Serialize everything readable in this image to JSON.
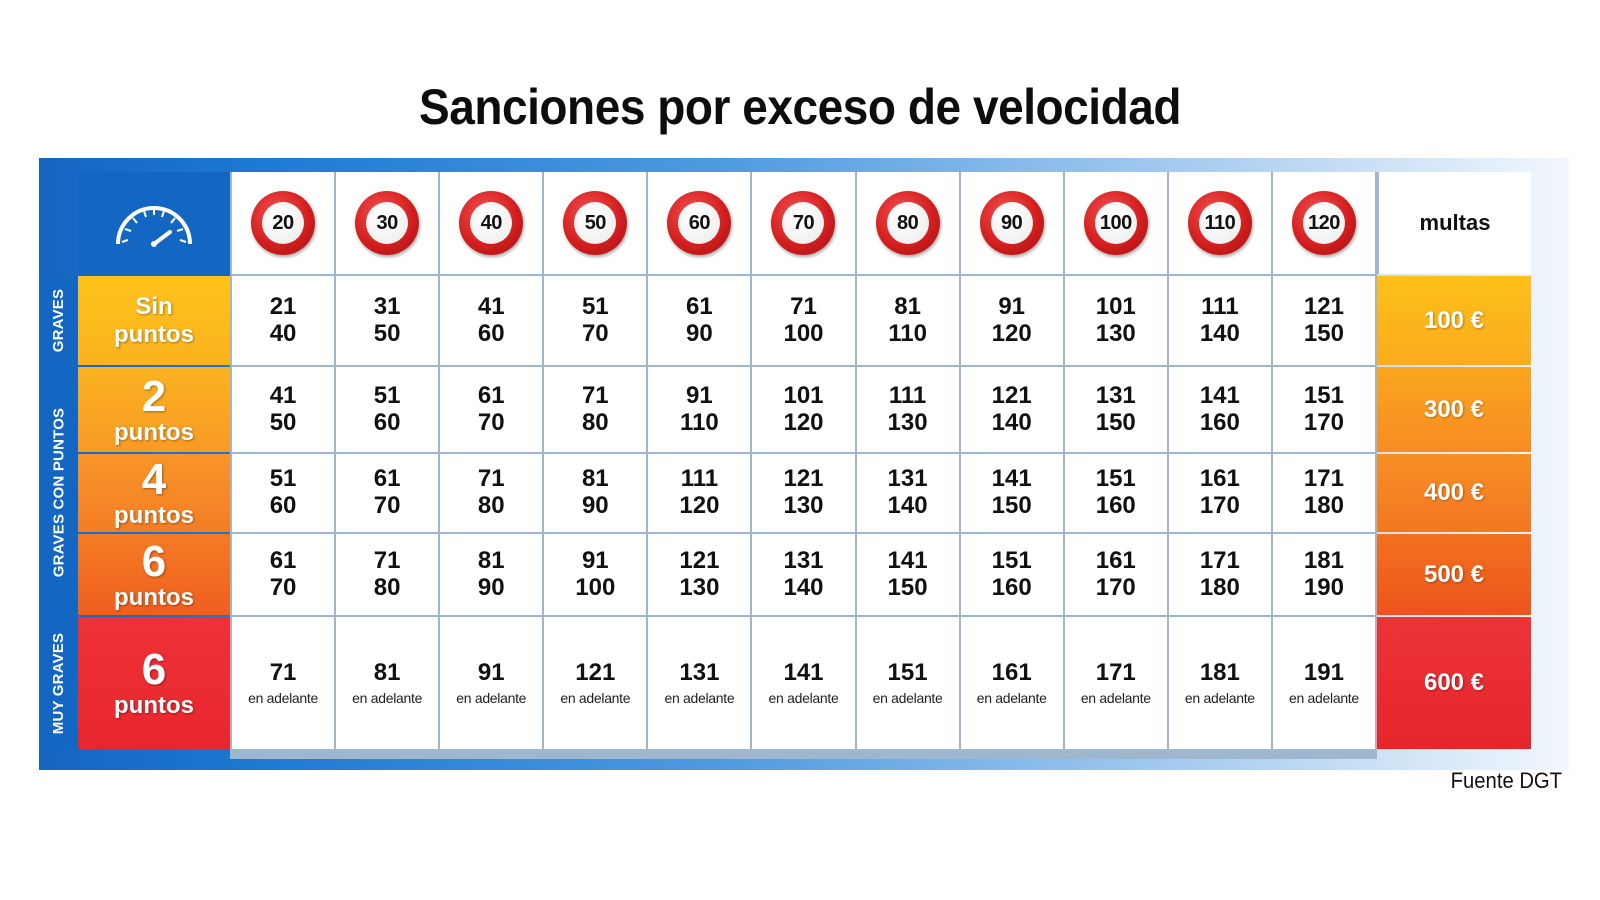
{
  "title": "Sanciones por exceso de velocidad",
  "source": "Fuente DGT",
  "colors": {
    "frame_blue": "#1466c3",
    "row_yellow": "#fdbf1a",
    "row_orange_light": "#f9a024",
    "row_orange": "#f58a20",
    "row_orange_dark": "#f06a1e",
    "row_red": "#ed3037",
    "sign_red": "#d41f1f"
  },
  "icons": {
    "corner": "speedometer-icon",
    "limits": "speed-limit-sign-icon"
  },
  "chart_data": {
    "type": "table",
    "title": "Sanciones por exceso de velocidad",
    "speed_limits": [
      "20",
      "30",
      "40",
      "50",
      "60",
      "70",
      "80",
      "90",
      "100",
      "110",
      "120"
    ],
    "fines_header": "multas",
    "categories": [
      {
        "label": "GRAVES",
        "rows": [
          0
        ]
      },
      {
        "label": "GRAVES CON PUNTOS",
        "rows": [
          1,
          2,
          3
        ]
      },
      {
        "label": "MUY GRAVES",
        "rows": [
          4
        ]
      }
    ],
    "rows": [
      {
        "points_top": "Sin",
        "points_bottom": "puntos",
        "fine": "100 €",
        "ranges": [
          [
            "21",
            "40"
          ],
          [
            "31",
            "50"
          ],
          [
            "41",
            "60"
          ],
          [
            "51",
            "70"
          ],
          [
            "61",
            "90"
          ],
          [
            "71",
            "100"
          ],
          [
            "81",
            "110"
          ],
          [
            "91",
            "120"
          ],
          [
            "101",
            "130"
          ],
          [
            "111",
            "140"
          ],
          [
            "121",
            "150"
          ]
        ]
      },
      {
        "points_top": "2",
        "points_bottom": "puntos",
        "fine": "300 €",
        "ranges": [
          [
            "41",
            "50"
          ],
          [
            "51",
            "60"
          ],
          [
            "61",
            "70"
          ],
          [
            "71",
            "80"
          ],
          [
            "91",
            "110"
          ],
          [
            "101",
            "120"
          ],
          [
            "111",
            "130"
          ],
          [
            "121",
            "140"
          ],
          [
            "131",
            "150"
          ],
          [
            "141",
            "160"
          ],
          [
            "151",
            "170"
          ]
        ]
      },
      {
        "points_top": "4",
        "points_bottom": "puntos",
        "fine": "400 €",
        "ranges": [
          [
            "51",
            "60"
          ],
          [
            "61",
            "70"
          ],
          [
            "71",
            "80"
          ],
          [
            "81",
            "90"
          ],
          [
            "111",
            "120"
          ],
          [
            "121",
            "130"
          ],
          [
            "131",
            "140"
          ],
          [
            "141",
            "150"
          ],
          [
            "151",
            "160"
          ],
          [
            "161",
            "170"
          ],
          [
            "171",
            "180"
          ]
        ]
      },
      {
        "points_top": "6",
        "points_bottom": "puntos",
        "fine": "500 €",
        "ranges": [
          [
            "61",
            "70"
          ],
          [
            "71",
            "80"
          ],
          [
            "81",
            "90"
          ],
          [
            "91",
            "100"
          ],
          [
            "121",
            "130"
          ],
          [
            "131",
            "140"
          ],
          [
            "141",
            "150"
          ],
          [
            "151",
            "160"
          ],
          [
            "161",
            "170"
          ],
          [
            "171",
            "180"
          ],
          [
            "181",
            "190"
          ]
        ]
      },
      {
        "points_top": "6",
        "points_bottom": "puntos",
        "fine": "600 €",
        "ranges": [
          [
            "71",
            "en adelante"
          ],
          [
            "81",
            "en adelante"
          ],
          [
            "91",
            "en adelante"
          ],
          [
            "121",
            "en adelante"
          ],
          [
            "131",
            "en adelante"
          ],
          [
            "141",
            "en adelante"
          ],
          [
            "151",
            "en adelante"
          ],
          [
            "161",
            "en adelante"
          ],
          [
            "171",
            "en adelante"
          ],
          [
            "181",
            "en adelante"
          ],
          [
            "191",
            "en adelante"
          ]
        ]
      }
    ]
  }
}
